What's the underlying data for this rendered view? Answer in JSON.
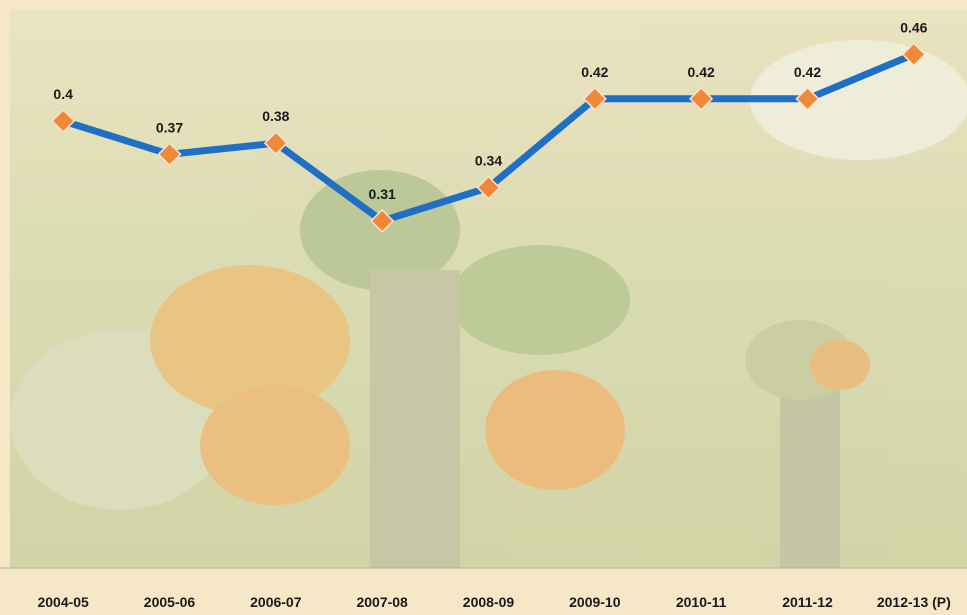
{
  "chart_data": {
    "type": "line",
    "categories": [
      "2004-05",
      "2005-06",
      "2006-07",
      "2007-08",
      "2008-09",
      "2009-10",
      "2010-11",
      "2011-12",
      "2012-13 (P)"
    ],
    "values": [
      0.4,
      0.37,
      0.38,
      0.31,
      0.34,
      0.42,
      0.42,
      0.42,
      0.46
    ],
    "color": "#1f6fc6",
    "marker_color": "#f0883a",
    "ylim": [
      0,
      0.5
    ]
  }
}
